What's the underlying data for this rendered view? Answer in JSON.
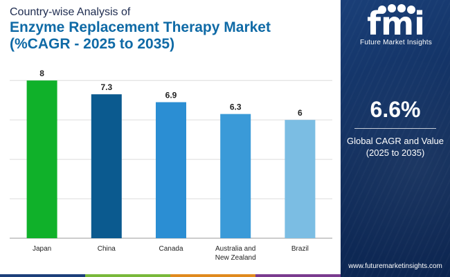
{
  "header": {
    "subtitle": "Country-wise Analysis of",
    "title_line1": "Enzyme Replacement Therapy Market",
    "title_line2": "(%CAGR - 2025 to 2035)"
  },
  "chart_data": {
    "type": "bar",
    "categories": [
      "Japan",
      "China",
      "Canada",
      "Australia and New Zealand",
      "Brazil"
    ],
    "category_lines": [
      [
        "Japan"
      ],
      [
        "China"
      ],
      [
        "Canada"
      ],
      [
        "Australia and",
        "New Zealand"
      ],
      [
        "Brazil"
      ]
    ],
    "values": [
      8,
      7.3,
      6.9,
      6.3,
      6
    ],
    "value_labels": [
      "8",
      "7.3",
      "6.9",
      "6.3",
      "6"
    ],
    "bar_colors": [
      "#10b12a",
      "#0b5a8f",
      "#2b8ed3",
      "#3a9ad8",
      "#7bbde3"
    ],
    "ylim": [
      0,
      8.5
    ],
    "gridlines": [
      2,
      4,
      6,
      8
    ],
    "title": "",
    "xlabel": "",
    "ylabel": ""
  },
  "side_panel": {
    "logo_letters": "fmi",
    "logo_name": "Future Market Insights",
    "kpi_value": "6.6%",
    "kpi_label_line1": "Global CAGR and Value",
    "kpi_label_line2": "(2025 to 2035)",
    "website": "www.futuremarketinsights.com"
  },
  "bottom_bar_colors": [
    "#1c3f7a",
    "#79b83a",
    "#e08a1e",
    "#7a3b8f"
  ]
}
